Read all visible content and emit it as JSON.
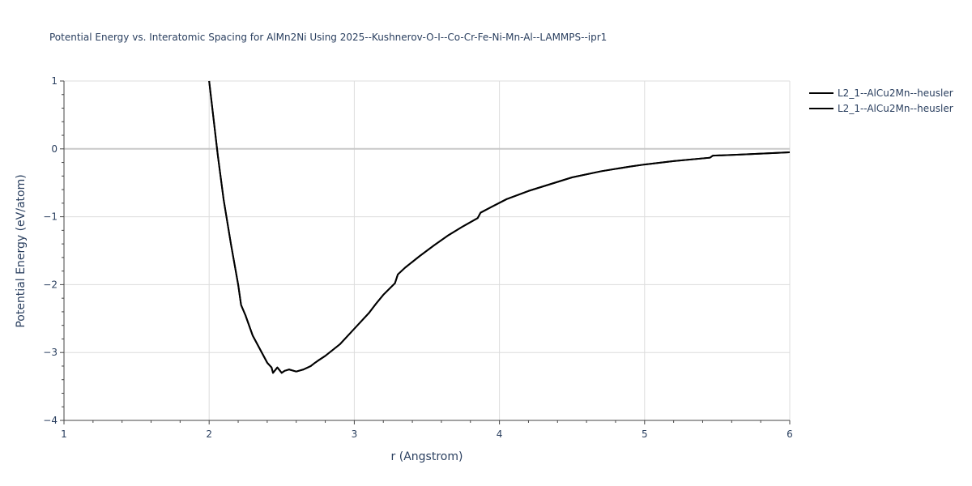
{
  "chart_data": {
    "type": "line",
    "title": "Potential Energy vs. Interatomic Spacing for AlMn2Ni Using 2025--Kushnerov-O-I--Co-Cr-Fe-Ni-Mn-Al--LAMMPS--ipr1",
    "xlabel": "r (Angstrom)",
    "ylabel": "Potential Energy (eV/atom)",
    "xlim": [
      1,
      6
    ],
    "ylim": [
      -4,
      1
    ],
    "x_ticks": [
      1,
      2,
      3,
      4,
      5,
      6
    ],
    "y_ticks": [
      1,
      0,
      -1,
      -2,
      -3,
      -4
    ],
    "x_tick_labels": [
      "1",
      "2",
      "3",
      "4",
      "5",
      "6"
    ],
    "y_tick_labels": [
      "1",
      "0",
      "−1",
      "−2",
      "−3",
      "−4"
    ],
    "grid": true,
    "zero_line": true,
    "legend_position": "top-right",
    "line_color": "#000000",
    "series": [
      {
        "name": "L2_1--AlCu2Mn--heusler",
        "x": [
          2.0,
          2.03,
          2.06,
          2.1,
          2.15,
          2.2,
          2.22,
          2.25,
          2.3,
          2.35,
          2.4,
          2.43,
          2.44,
          2.47,
          2.5,
          2.52,
          2.55,
          2.6,
          2.65,
          2.7,
          2.73,
          2.75,
          2.8,
          2.9,
          3.0,
          3.1,
          3.15,
          3.2,
          3.28,
          3.3,
          3.35,
          3.45,
          3.55,
          3.65,
          3.75,
          3.85,
          3.87,
          3.95,
          4.05,
          4.2,
          4.35,
          4.5,
          4.7,
          4.9,
          5.0,
          5.2,
          5.45,
          5.47,
          5.7,
          6.0
        ],
        "y": [
          1.0,
          0.45,
          -0.1,
          -0.75,
          -1.4,
          -2.0,
          -2.3,
          -2.45,
          -2.75,
          -2.95,
          -3.15,
          -3.22,
          -3.3,
          -3.22,
          -3.3,
          -3.27,
          -3.25,
          -3.28,
          -3.25,
          -3.2,
          -3.15,
          -3.12,
          -3.05,
          -2.88,
          -2.65,
          -2.42,
          -2.28,
          -2.15,
          -1.98,
          -1.85,
          -1.75,
          -1.58,
          -1.42,
          -1.27,
          -1.14,
          -1.02,
          -0.94,
          -0.85,
          -0.74,
          -0.62,
          -0.52,
          -0.42,
          -0.33,
          -0.26,
          -0.23,
          -0.18,
          -0.13,
          -0.1,
          -0.08,
          -0.05
        ]
      },
      {
        "name": "L2_1--AlCu2Mn--heusler",
        "x": [
          2.0,
          2.03,
          2.06,
          2.1,
          2.15,
          2.2,
          2.22,
          2.25,
          2.3,
          2.35,
          2.4,
          2.43,
          2.44,
          2.47,
          2.5,
          2.52,
          2.55,
          2.6,
          2.65,
          2.7,
          2.73,
          2.75,
          2.8,
          2.9,
          3.0,
          3.1,
          3.15,
          3.2,
          3.28,
          3.3,
          3.35,
          3.45,
          3.55,
          3.65,
          3.75,
          3.85,
          3.87,
          3.95,
          4.05,
          4.2,
          4.35,
          4.5,
          4.7,
          4.9,
          5.0,
          5.2,
          5.45,
          5.47,
          5.7,
          6.0
        ],
        "y": [
          1.0,
          0.45,
          -0.1,
          -0.75,
          -1.4,
          -2.0,
          -2.3,
          -2.45,
          -2.75,
          -2.95,
          -3.15,
          -3.22,
          -3.3,
          -3.22,
          -3.3,
          -3.27,
          -3.25,
          -3.28,
          -3.25,
          -3.2,
          -3.15,
          -3.12,
          -3.05,
          -2.88,
          -2.65,
          -2.42,
          -2.28,
          -2.15,
          -1.98,
          -1.85,
          -1.75,
          -1.58,
          -1.42,
          -1.27,
          -1.14,
          -1.02,
          -0.94,
          -0.85,
          -0.74,
          -0.62,
          -0.52,
          -0.42,
          -0.33,
          -0.26,
          -0.23,
          -0.18,
          -0.13,
          -0.1,
          -0.08,
          -0.05
        ]
      }
    ]
  }
}
